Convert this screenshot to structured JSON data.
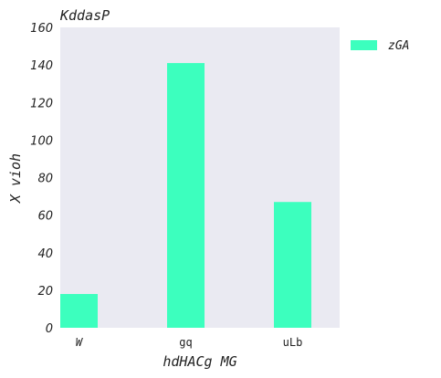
{
  "chart_data": {
    "type": "bar",
    "title": "KddasP",
    "xlabel": "hdHACg MG",
    "ylabel": "X vioh",
    "categories": [
      "W",
      "gq",
      "uLb"
    ],
    "series": [
      {
        "name": "zGA",
        "values": [
          18,
          141,
          67
        ],
        "color": "#3cffbe"
      }
    ],
    "ylim": [
      0,
      160
    ],
    "yticks": [
      0,
      20,
      40,
      60,
      80,
      100,
      120,
      140,
      160
    ],
    "grid": false,
    "legend": "outside-top-right",
    "plot_background": "#eaeaf2"
  }
}
